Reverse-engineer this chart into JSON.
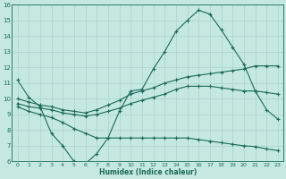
{
  "xlabel": "Humidex (Indice chaleur)",
  "ylabel": "",
  "bg_color": "#c5e8e0",
  "line_color": "#1a6b5a",
  "grid_color": "#a8d4cc",
  "xlim": [
    -0.5,
    23.5
  ],
  "ylim": [
    6,
    16
  ],
  "xticks": [
    0,
    1,
    2,
    3,
    4,
    5,
    6,
    7,
    8,
    9,
    10,
    11,
    12,
    13,
    14,
    15,
    16,
    17,
    18,
    19,
    20,
    21,
    22,
    23
  ],
  "yticks": [
    6,
    7,
    8,
    9,
    10,
    11,
    12,
    13,
    14,
    15,
    16
  ],
  "series": [
    {
      "x": [
        0,
        1,
        2,
        3,
        4,
        5,
        6,
        7,
        8,
        9,
        10,
        11,
        12,
        13,
        14,
        15,
        16,
        17,
        18,
        19,
        20,
        21,
        22,
        23
      ],
      "y": [
        11.2,
        10.1,
        9.5,
        7.8,
        7.0,
        6.0,
        5.85,
        6.5,
        7.5,
        9.2,
        10.5,
        10.6,
        11.9,
        13.0,
        14.3,
        15.0,
        15.65,
        15.4,
        14.4,
        13.3,
        12.2,
        10.5,
        9.3,
        8.7
      ]
    },
    {
      "x": [
        0,
        1,
        2,
        3,
        4,
        5,
        6,
        7,
        8,
        9,
        10,
        11,
        12,
        13,
        14,
        15,
        16,
        17,
        18,
        19,
        20,
        21,
        22,
        23
      ],
      "y": [
        10.0,
        9.8,
        9.6,
        9.5,
        9.3,
        9.2,
        9.1,
        9.3,
        9.6,
        9.9,
        10.3,
        10.5,
        10.7,
        11.0,
        11.2,
        11.4,
        11.5,
        11.6,
        11.7,
        11.8,
        11.9,
        12.1,
        12.1,
        12.1
      ]
    },
    {
      "x": [
        0,
        1,
        2,
        3,
        4,
        5,
        6,
        7,
        8,
        9,
        10,
        11,
        12,
        13,
        14,
        15,
        16,
        17,
        18,
        19,
        20,
        21,
        22,
        23
      ],
      "y": [
        9.7,
        9.5,
        9.4,
        9.3,
        9.1,
        9.0,
        8.9,
        9.0,
        9.2,
        9.4,
        9.7,
        9.9,
        10.1,
        10.3,
        10.6,
        10.8,
        10.8,
        10.8,
        10.7,
        10.6,
        10.5,
        10.5,
        10.4,
        10.3
      ]
    },
    {
      "x": [
        0,
        1,
        2,
        3,
        4,
        5,
        6,
        7,
        8,
        9,
        10,
        11,
        12,
        13,
        14,
        15,
        16,
        17,
        18,
        19,
        20,
        21,
        22,
        23
      ],
      "y": [
        9.5,
        9.2,
        9.0,
        8.8,
        8.5,
        8.1,
        7.8,
        7.5,
        7.5,
        7.5,
        7.5,
        7.5,
        7.5,
        7.5,
        7.5,
        7.5,
        7.4,
        7.3,
        7.2,
        7.1,
        7.0,
        6.95,
        6.8,
        6.7
      ]
    }
  ]
}
